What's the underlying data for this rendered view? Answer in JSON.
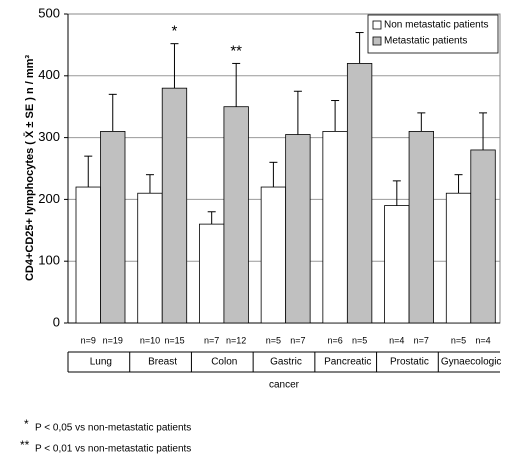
{
  "chart_data": {
    "type": "bar",
    "y_label": "CD4+CD25+ lymphocytes ( X̄ ± SE )    n / mm³",
    "x_label": "cancer",
    "categories": [
      "Lung",
      "Breast",
      "Colon",
      "Gastric",
      "Pancreatic",
      "Prostatic",
      "Gynaecologic"
    ],
    "series": [
      {
        "name": "Non metastatic patients",
        "color": "#ffffff",
        "values": [
          220,
          210,
          160,
          220,
          310,
          190,
          210
        ],
        "errors": [
          50,
          30,
          20,
          40,
          50,
          40,
          30
        ],
        "n_labels": [
          "n=9",
          "n=10",
          "n=7",
          "n=5",
          "n=6",
          "n=4",
          "n=5"
        ]
      },
      {
        "name": "Metastatic patients",
        "color": "#c0c0c0",
        "values": [
          310,
          380,
          350,
          305,
          420,
          310,
          280
        ],
        "errors": [
          60,
          72,
          70,
          70,
          50,
          30,
          60
        ],
        "n_labels": [
          "n=19",
          "n=15",
          "n=12",
          "n=7",
          "n=5",
          "n=7",
          "n=4"
        ],
        "annotations": [
          null,
          "*",
          "**",
          null,
          null,
          null,
          null
        ]
      }
    ],
    "ylim": [
      0,
      500
    ],
    "yticks": [
      0,
      100,
      200,
      300,
      400,
      500
    ],
    "grid": true,
    "legend": "top-right",
    "footnotes": [
      {
        "mark": "*",
        "text": "P < 0,05 vs non-metastatic patients"
      },
      {
        "mark": "**",
        "text": "P < 0,01 vs non-metastatic patients"
      }
    ]
  }
}
